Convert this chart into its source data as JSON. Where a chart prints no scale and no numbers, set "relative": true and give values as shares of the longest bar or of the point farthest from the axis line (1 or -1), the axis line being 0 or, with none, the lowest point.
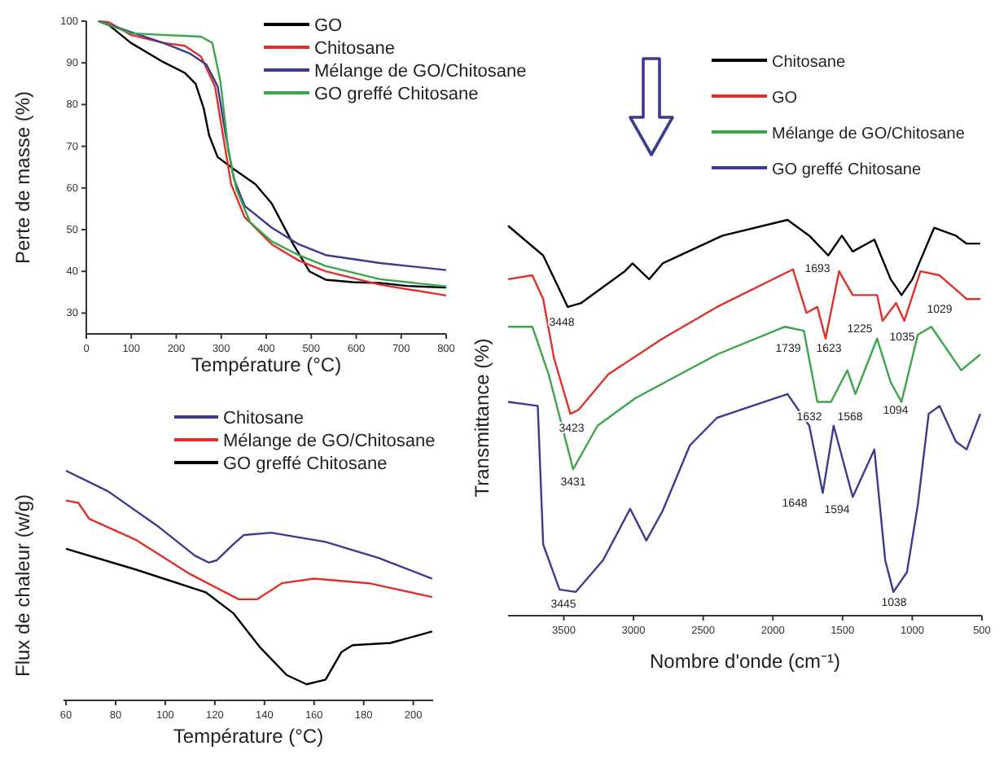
{
  "chart_data": [
    {
      "type": "line",
      "xlabel": "Température (°C)",
      "ylabel": "Perte de masse (%)",
      "xlim": [
        0,
        800
      ],
      "ylim": [
        25,
        100
      ],
      "xticks": [
        0,
        100,
        200,
        300,
        400,
        500,
        600,
        700,
        800
      ],
      "yticks": [
        30,
        40,
        50,
        60,
        70,
        80,
        90,
        100
      ],
      "legend": "top right",
      "series": [
        {
          "name": "GO",
          "color": "#000000",
          "x": [
            27,
            51,
            99,
            171,
            219,
            243,
            261,
            273,
            292,
            328,
            376,
            412,
            460,
            496,
            532,
            593,
            653,
            713,
            800
          ],
          "values": [
            100,
            99,
            94.8,
            90.2,
            87.6,
            85,
            79.1,
            72.6,
            67.4,
            64.5,
            60.9,
            56.3,
            46.5,
            40,
            38,
            37.4,
            37.2,
            36.5,
            36.1
          ]
        },
        {
          "name": "Chitosane",
          "color": "#e0302a",
          "x": [
            27,
            51,
            99,
            171,
            219,
            255,
            286,
            304,
            322,
            352,
            412,
            472,
            532,
            653,
            800
          ],
          "values": [
            100,
            99.7,
            96.7,
            94.8,
            94.1,
            91.5,
            84.4,
            72.6,
            60.9,
            53,
            46.5,
            42.6,
            40,
            36.8,
            34.2
          ]
        },
        {
          "name": "Mélange de GO/Chitosane",
          "color": "#3b3b8f",
          "x": [
            27,
            99,
            171,
            231,
            267,
            292,
            310,
            328,
            352,
            412,
            472,
            532,
            653,
            800
          ],
          "values": [
            100,
            97.4,
            94.8,
            92.2,
            89.6,
            84.4,
            72.6,
            62.2,
            55.7,
            50.5,
            46.5,
            43.9,
            42,
            40.3
          ]
        },
        {
          "name": "GO greffé Chitosane",
          "color": "#3aa54a",
          "x": [
            27,
            99,
            171,
            255,
            280,
            298,
            316,
            334,
            364,
            412,
            472,
            532,
            653,
            800
          ],
          "values": [
            100,
            97.1,
            96.7,
            96.3,
            94.8,
            85.7,
            68.7,
            59.6,
            51.8,
            47.2,
            43.9,
            41.3,
            38.1,
            36.4
          ]
        }
      ]
    },
    {
      "type": "line",
      "relative": true,
      "xlabel": "Température (°C)",
      "ylabel": "Flux de chaleur (w/g)",
      "xlim": [
        59,
        208
      ],
      "xticks": [
        60,
        80,
        100,
        120,
        140,
        160,
        180,
        200
      ],
      "legend": "top",
      "series": [
        {
          "name": "Chitosane",
          "color": "#3b3b8f",
          "x": [
            60,
            77,
            96.8,
            112,
            117.5,
            120.8,
            127,
            131.7,
            142.7,
            164.6,
            186,
            207.6
          ],
          "values": [
            1,
            0.91,
            0.76,
            0.63,
            0.6,
            0.61,
            0.675,
            0.72,
            0.73,
            0.69,
            0.62,
            0.53
          ]
        },
        {
          "name": "Mélange de GO/Chitosane",
          "color": "#e0302a",
          "x": [
            60,
            65,
            69.4,
            88,
            110,
            129.6,
            137,
            147,
            160,
            182,
            207.6
          ],
          "values": [
            0.87,
            0.86,
            0.79,
            0.7,
            0.55,
            0.44,
            0.44,
            0.51,
            0.53,
            0.51,
            0.45
          ]
        },
        {
          "name": "GO greffé Chitosane",
          "color": "#000000",
          "x": [
            60,
            88,
            116.4,
            127.4,
            138.3,
            149,
            157,
            164.6,
            171,
            175.5,
            190.8,
            207.6
          ],
          "values": [
            0.66,
            0.57,
            0.47,
            0.38,
            0.23,
            0.11,
            0.07,
            0.09,
            0.21,
            0.24,
            0.25,
            0.3
          ]
        }
      ]
    },
    {
      "type": "line",
      "relative": true,
      "xlabel": "Nombre d'onde (cm⁻¹)",
      "ylabel": "Transmittance (%)",
      "xlim": [
        3900,
        500
      ],
      "xticks": [
        3500,
        3000,
        2500,
        2000,
        1500,
        1000,
        500
      ],
      "legend": "top",
      "series": [
        {
          "name": "Chitosane",
          "color": "#000000",
          "x": [
            3900,
            3648,
            3472,
            3375,
            3063,
            3007,
            2888,
            2791,
            2362,
            1895,
            1739,
            1603,
            1505,
            1427,
            1272,
            1155,
            1077,
            999,
            843,
            687,
            610,
            512
          ],
          "values": [
            0.985,
            0.91,
            0.78,
            0.79,
            0.87,
            0.89,
            0.85,
            0.89,
            0.96,
            1,
            0.96,
            0.91,
            0.96,
            0.92,
            0.95,
            0.85,
            0.81,
            0.85,
            0.98,
            0.96,
            0.94,
            0.94
          ]
        },
        {
          "name": "GO",
          "color": "#e0302a",
          "x": [
            3900,
            3726,
            3648,
            3570,
            3453,
            3394,
            3180,
            2791,
            2401,
            1856,
            1759,
            1681,
            1622,
            1525,
            1427,
            1252,
            1213,
            1116,
            1057,
            941,
            804,
            610,
            512
          ],
          "values": [
            0.85,
            0.86,
            0.8,
            0.65,
            0.51,
            0.52,
            0.61,
            0.7,
            0.78,
            0.875,
            0.765,
            0.78,
            0.7,
            0.87,
            0.81,
            0.81,
            0.745,
            0.79,
            0.745,
            0.87,
            0.86,
            0.8,
            0.8
          ]
        },
        {
          "name": "Mélange de GO/Chitosane",
          "color": "#3aa54a",
          "x": [
            3900,
            3726,
            3609,
            3433,
            3258,
            2985,
            2401,
            1914,
            1778,
            1681,
            1583,
            1466,
            1408,
            1252,
            1155,
            1077,
            960,
            863,
            649,
            512
          ],
          "values": [
            0.73,
            0.73,
            0.61,
            0.37,
            0.48,
            0.55,
            0.66,
            0.73,
            0.72,
            0.54,
            0.54,
            0.62,
            0.56,
            0.7,
            0.59,
            0.54,
            0.71,
            0.73,
            0.62,
            0.66
          ]
        },
        {
          "name": "GO greffé Chitosane",
          "color": "#3b3b8f",
          "x": [
            3900,
            3687,
            3648,
            3531,
            3414,
            3219,
            3024,
            2908,
            2791,
            2596,
            2401,
            1895,
            1739,
            1642,
            1564,
            1427,
            1272,
            1194,
            1135,
            1038,
            960,
            882,
            804,
            687,
            610,
            512
          ],
          "values": [
            0.54,
            0.53,
            0.18,
            0.066,
            0.06,
            0.14,
            0.27,
            0.19,
            0.265,
            0.43,
            0.5,
            0.56,
            0.48,
            0.31,
            0.48,
            0.3,
            0.42,
            0.14,
            0.06,
            0.11,
            0.28,
            0.51,
            0.53,
            0.44,
            0.42,
            0.51
          ]
        }
      ],
      "annotations": [
        "3448",
        "1693",
        "1225",
        "1035",
        "1029",
        "3423",
        "1739",
        "1623",
        "3431",
        "1632",
        "1568",
        "1094",
        "1648",
        "1594",
        "3445",
        "1038"
      ]
    }
  ]
}
